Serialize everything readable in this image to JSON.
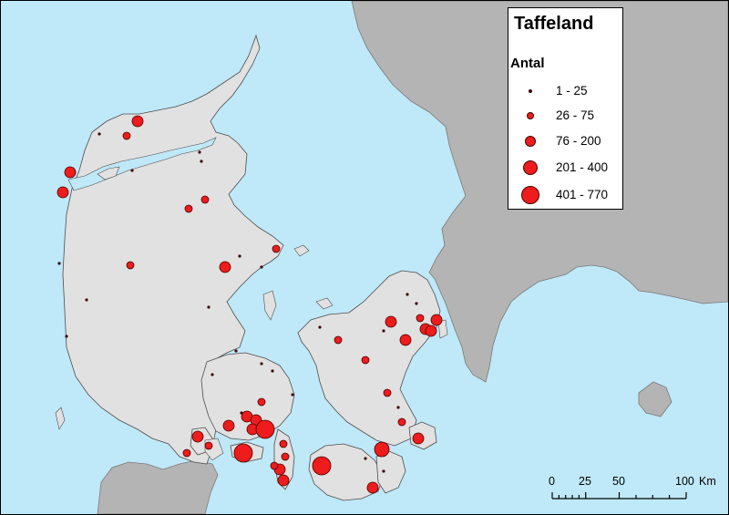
{
  "legend": {
    "title": "Taffeland",
    "subtitle": "Antal",
    "classes": [
      {
        "label": "1 - 25",
        "size_class": 1
      },
      {
        "label": "26 - 75",
        "size_class": 2
      },
      {
        "label": "76 - 200",
        "size_class": 3
      },
      {
        "label": "201 - 400",
        "size_class": 4
      },
      {
        "label": "401 - 770",
        "size_class": 5
      }
    ]
  },
  "scale_bar": {
    "ticks": [
      "0",
      "25",
      "50",
      "100"
    ],
    "unit": "Km"
  },
  "colors": {
    "sea": "#bfe8f8",
    "land": "#e1e1e1",
    "foreign_land": "#b4b4b4",
    "symbol_fill": "#ee1c1c",
    "symbol_outline": "#4a0000",
    "small_dot": "#3a0a0a"
  }
}
